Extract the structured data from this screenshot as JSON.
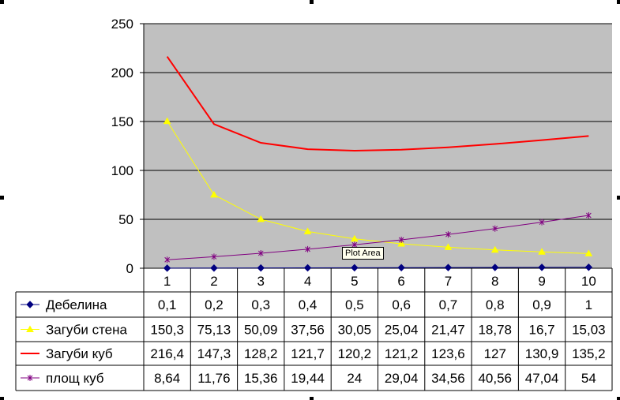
{
  "chart_data": {
    "type": "line",
    "categories": [
      "1",
      "2",
      "3",
      "4",
      "5",
      "6",
      "7",
      "8",
      "9",
      "10"
    ],
    "ylim": [
      0,
      250
    ],
    "yticks": [
      0,
      50,
      100,
      150,
      200,
      250
    ],
    "grid": true,
    "legend": "data-table",
    "plot_background": "#c0c0c0",
    "series": [
      {
        "name": "Дебелина",
        "color": "#000080",
        "marker": "diamond",
        "values": [
          0.1,
          0.2,
          0.3,
          0.4,
          0.5,
          0.6,
          0.7,
          0.8,
          0.9,
          1
        ],
        "labels": [
          "0,1",
          "0,2",
          "0,3",
          "0,4",
          "0,5",
          "0,6",
          "0,7",
          "0,8",
          "0,9",
          "1"
        ]
      },
      {
        "name": "Загуби стена",
        "color": "#ffff00",
        "marker": "triangle",
        "values": [
          150.3,
          75.13,
          50.09,
          37.56,
          30.05,
          25.04,
          21.47,
          18.78,
          16.7,
          15.03
        ],
        "labels": [
          "150,3",
          "75,13",
          "50,09",
          "37,56",
          "30,05",
          "25,04",
          "21,47",
          "18,78",
          "16,7",
          "15,03"
        ]
      },
      {
        "name": "Загуби куб",
        "color": "#ff0000",
        "marker": "none",
        "values": [
          216.4,
          147.3,
          128.2,
          121.7,
          120.2,
          121.2,
          123.6,
          127,
          130.9,
          135.2
        ],
        "labels": [
          "216,4",
          "147,3",
          "128,2",
          "121,7",
          "120,2",
          "121,2",
          "123,6",
          "127",
          "130,9",
          "135,2"
        ]
      },
      {
        "name": "площ куб",
        "color": "#800080",
        "marker": "star",
        "values": [
          8.64,
          11.76,
          15.36,
          19.44,
          24,
          29.04,
          34.56,
          40.56,
          47.04,
          54
        ],
        "labels": [
          "8,64",
          "11,76",
          "15,36",
          "19,44",
          "24",
          "29,04",
          "34,56",
          "40,56",
          "47,04",
          "54"
        ]
      }
    ]
  },
  "tooltip": {
    "label": "Plot Area"
  }
}
